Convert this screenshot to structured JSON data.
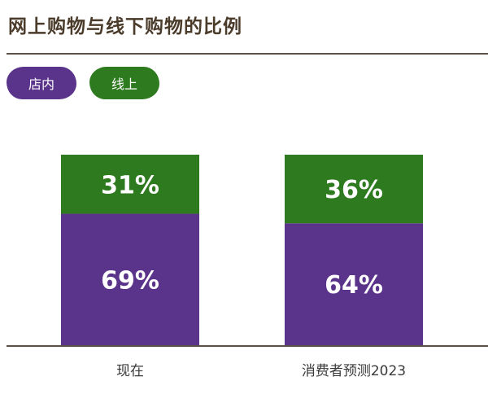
{
  "title": "网上购物与线下购物的比例",
  "legend": [
    {
      "label": "店内",
      "color": "#5a338a"
    },
    {
      "label": "线上",
      "color": "#2e7a1f"
    }
  ],
  "chart_data": {
    "type": "bar",
    "stacked": true,
    "categories": [
      "现在",
      "消费者预测2023"
    ],
    "series": [
      {
        "name": "店内",
        "values": [
          69,
          64
        ],
        "labels": [
          "69%",
          "64%"
        ],
        "color": "#5a338a"
      },
      {
        "name": "线上",
        "values": [
          31,
          36
        ],
        "labels": [
          "31%",
          "36%"
        ],
        "color": "#2e7a1f"
      }
    ],
    "title": "网上购物与线下购物的比例",
    "xlabel": "",
    "ylabel": "",
    "ylim": [
      0,
      100
    ],
    "grid": false,
    "legend_position": "top-left"
  }
}
